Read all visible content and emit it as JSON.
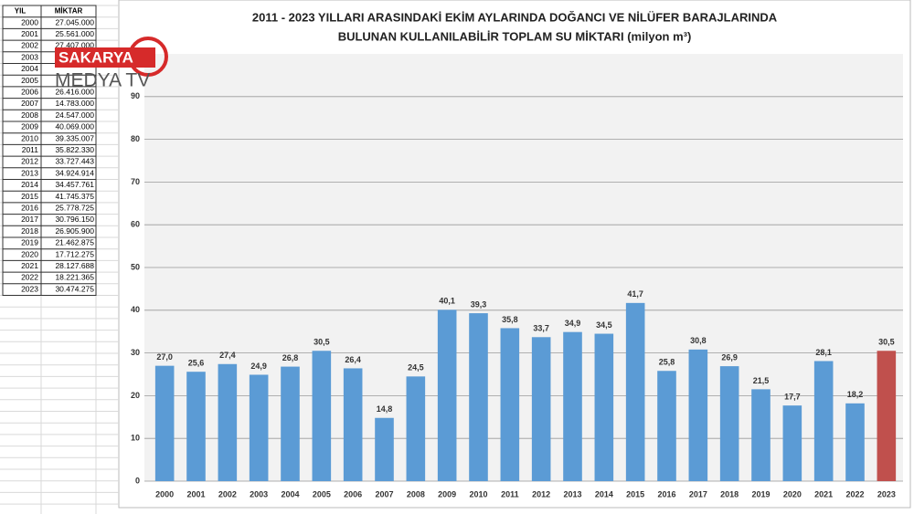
{
  "table": {
    "header": [
      "YIL",
      "MİKTAR"
    ],
    "rows": [
      [
        2000,
        "27.045.000"
      ],
      [
        2001,
        "25.561.000"
      ],
      [
        2002,
        "27.407.000"
      ],
      [
        2003,
        null
      ],
      [
        2004,
        null
      ],
      [
        2005,
        null
      ],
      [
        2006,
        "26.416.000"
      ],
      [
        2007,
        "14.783.000"
      ],
      [
        2008,
        "24.547.000"
      ],
      [
        2009,
        "40.069.000"
      ],
      [
        2010,
        "39.335.007"
      ],
      [
        2011,
        "35.822.330"
      ],
      [
        2012,
        "33.727.443"
      ],
      [
        2013,
        "34.924.914"
      ],
      [
        2014,
        "34.457.761"
      ],
      [
        2015,
        "41.745.375"
      ],
      [
        2016,
        "25.778.725"
      ],
      [
        2017,
        "30.796.150"
      ],
      [
        2018,
        "26.905.900"
      ],
      [
        2019,
        "21.462.875"
      ],
      [
        2020,
        "17.712.275"
      ],
      [
        2021,
        "28.127.688"
      ],
      [
        2022,
        "18.221.365"
      ],
      [
        2023,
        "30.474.275"
      ]
    ]
  },
  "logo": {
    "line1": "SAKARYA",
    "line2": "MEDYA TV"
  },
  "chart_data": {
    "type": "bar",
    "title": "2011 - 2023 YILLARI ARASINDAKİ EKİM AYLARINDA DOĞANCI VE NİLÜFER BARAJLARINDA",
    "subtitle": "BULUNAN KULLANILABİLİR TOPLAM SU MİKTARI (milyon m³)",
    "categories": [
      "2000",
      "2001",
      "2002",
      "2003",
      "2004",
      "2005",
      "2006",
      "2007",
      "2008",
      "2009",
      "2010",
      "2011",
      "2012",
      "2013",
      "2014",
      "2015",
      "2016",
      "2017",
      "2018",
      "2019",
      "2020",
      "2021",
      "2022",
      "2023"
    ],
    "values": [
      27.0,
      25.6,
      27.4,
      24.9,
      26.8,
      30.5,
      26.4,
      14.8,
      24.5,
      40.1,
      39.3,
      35.8,
      33.7,
      34.9,
      34.5,
      41.7,
      25.8,
      30.8,
      26.9,
      21.5,
      17.7,
      28.1,
      18.2,
      30.5
    ],
    "value_labels": [
      "27,0",
      "25,6",
      "27,4",
      "24,9",
      "26,8",
      "30,5",
      "26,4",
      "14,8",
      "24,5",
      "40,1",
      "39,3",
      "35,8",
      "33,7",
      "34,9",
      "34,5",
      "41,7",
      "25,8",
      "30,8",
      "26,9",
      "21,5",
      "17,7",
      "28,1",
      "18,2",
      "30,5"
    ],
    "colors": [
      "#5b9bd5",
      "#5b9bd5",
      "#5b9bd5",
      "#5b9bd5",
      "#5b9bd5",
      "#5b9bd5",
      "#5b9bd5",
      "#5b9bd5",
      "#5b9bd5",
      "#5b9bd5",
      "#5b9bd5",
      "#5b9bd5",
      "#5b9bd5",
      "#5b9bd5",
      "#5b9bd5",
      "#5b9bd5",
      "#5b9bd5",
      "#5b9bd5",
      "#5b9bd5",
      "#5b9bd5",
      "#5b9bd5",
      "#5b9bd5",
      "#5b9bd5",
      "#c0504d"
    ],
    "ylim": [
      0,
      100
    ],
    "yticks": [
      0,
      10,
      20,
      30,
      40,
      50,
      60,
      70,
      80,
      90
    ],
    "grid": true
  }
}
